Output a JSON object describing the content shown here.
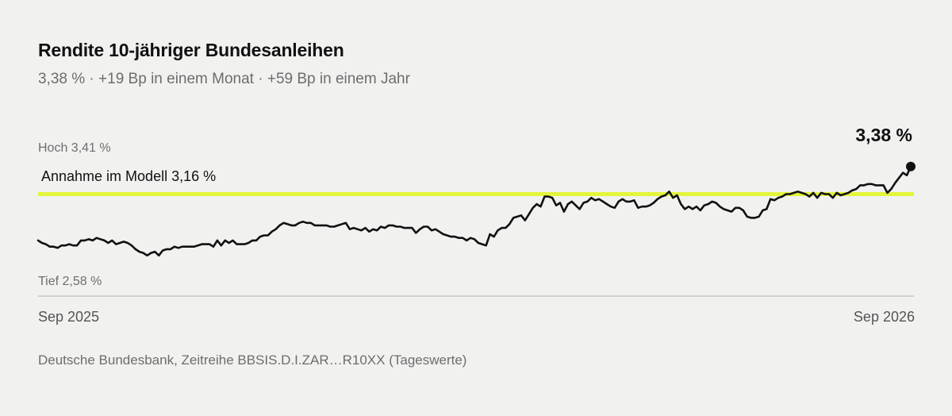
{
  "header": {
    "title": "Rendite 10-jähriger Bundesanleihen",
    "subtitle": "3,38 % · +19 Bp in einem Monat · +59 Bp in einem Jahr"
  },
  "labels": {
    "high": "Hoch 3,41 %",
    "low": "Tief 2,58 %",
    "reference": "Annahme im Modell 3,16 %",
    "last_value": "3,38 %",
    "x_start": "Sep 2025",
    "x_end": "Sep 2026"
  },
  "footer": {
    "source": "Deutsche Bundesbank, Zeitreihe BBSIS.D.I.ZAR…R10XX (Tageswerte)"
  },
  "colors": {
    "line": "#111111",
    "reference_line": "#e3f53c",
    "axis": "#c8c8c8",
    "background": "#f1f1f0"
  },
  "chart_data": {
    "type": "line",
    "title": "Rendite 10-jähriger Bundesanleihen",
    "unit": "%",
    "x_range": [
      "Sep 2025",
      "Sep 2026"
    ],
    "y_high": 3.41,
    "y_low": 2.58,
    "reference_value": 3.16,
    "last_value": 3.38,
    "grid": false,
    "values": [
      2.79,
      2.77,
      2.76,
      2.74,
      2.74,
      2.73,
      2.75,
      2.75,
      2.76,
      2.75,
      2.75,
      2.79,
      2.79,
      2.8,
      2.79,
      2.81,
      2.8,
      2.79,
      2.77,
      2.79,
      2.76,
      2.77,
      2.78,
      2.77,
      2.75,
      2.72,
      2.7,
      2.69,
      2.67,
      2.69,
      2.7,
      2.67,
      2.71,
      2.72,
      2.72,
      2.74,
      2.73,
      2.74,
      2.74,
      2.74,
      2.74,
      2.75,
      2.76,
      2.76,
      2.76,
      2.74,
      2.79,
      2.75,
      2.79,
      2.77,
      2.79,
      2.76,
      2.76,
      2.76,
      2.77,
      2.79,
      2.79,
      2.82,
      2.83,
      2.83,
      2.86,
      2.88,
      2.91,
      2.93,
      2.92,
      2.91,
      2.91,
      2.93,
      2.94,
      2.93,
      2.93,
      2.91,
      2.91,
      2.91,
      2.91,
      2.9,
      2.9,
      2.91,
      2.92,
      2.93,
      2.88,
      2.89,
      2.88,
      2.87,
      2.89,
      2.86,
      2.88,
      2.87,
      2.9,
      2.89,
      2.91,
      2.91,
      2.9,
      2.9,
      2.89,
      2.89,
      2.89,
      2.85,
      2.88,
      2.9,
      2.9,
      2.87,
      2.88,
      2.86,
      2.84,
      2.83,
      2.82,
      2.82,
      2.81,
      2.81,
      2.79,
      2.81,
      2.8,
      2.77,
      2.76,
      2.75,
      2.84,
      2.82,
      2.87,
      2.89,
      2.89,
      2.92,
      2.97,
      2.98,
      2.99,
      2.95,
      3.0,
      3.05,
      3.08,
      3.06,
      3.14,
      3.14,
      3.13,
      3.07,
      3.09,
      3.02,
      3.08,
      3.1,
      3.07,
      3.04,
      3.09,
      3.1,
      3.13,
      3.11,
      3.12,
      3.1,
      3.08,
      3.06,
      3.05,
      3.1,
      3.12,
      3.1,
      3.1,
      3.11,
      3.05,
      3.06,
      3.06,
      3.07,
      3.09,
      3.12,
      3.14,
      3.15,
      3.18,
      3.13,
      3.15,
      3.08,
      3.04,
      3.06,
      3.04,
      3.06,
      3.03,
      3.07,
      3.08,
      3.1,
      3.09,
      3.06,
      3.04,
      3.03,
      3.02,
      3.05,
      3.05,
      3.03,
      2.98,
      2.97,
      2.97,
      2.98,
      3.03,
      3.04,
      3.12,
      3.11,
      3.13,
      3.14,
      3.16,
      3.16,
      3.17,
      3.18,
      3.17,
      3.16,
      3.14,
      3.17,
      3.13,
      3.17,
      3.16,
      3.16,
      3.13,
      3.17,
      3.15,
      3.16,
      3.17,
      3.19,
      3.2,
      3.23,
      3.23,
      3.24,
      3.24,
      3.23,
      3.23,
      3.23,
      3.17,
      3.2,
      3.25,
      3.29,
      3.33,
      3.31,
      3.38
    ]
  }
}
